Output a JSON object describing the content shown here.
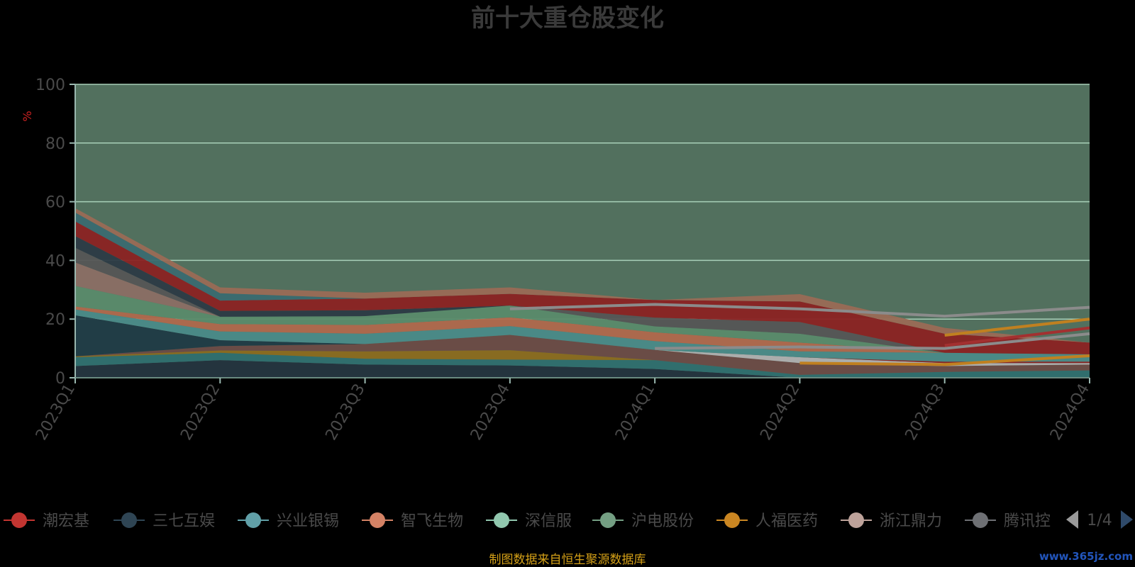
{
  "chart_data": {
    "type": "area",
    "title": "前十大重仓股变化",
    "ylabel": "%",
    "ylim": [
      0,
      100
    ],
    "yticks": [
      "0",
      "20",
      "40",
      "60",
      "80",
      "100"
    ],
    "grid": true,
    "categories": [
      "2023Q1",
      "2023Q2",
      "2023Q3",
      "2023Q4",
      "2024Q1",
      "2024Q2",
      "2024Q3",
      "2024Q4"
    ],
    "background_total": 100,
    "layers": [
      {
        "color": "#22303c",
        "values": [
          4,
          6,
          4.5,
          4.2,
          3,
          0,
          0,
          0
        ]
      },
      {
        "color": "#2e6e6e",
        "values": [
          3,
          2.5,
          2,
          2,
          3,
          1,
          2,
          2.5
        ]
      },
      {
        "color": "#8b6a1e",
        "values": [
          0.3,
          0.8,
          2.5,
          3.2,
          0,
          0,
          0,
          0
        ]
      },
      {
        "color": "#6b4a44",
        "values": [
          0,
          1.5,
          2.5,
          5.2,
          3.5,
          4,
          2,
          2
        ]
      },
      {
        "color": "#b0b0b0",
        "values": [
          0,
          0,
          0,
          0,
          0,
          2,
          1,
          0.5
        ]
      },
      {
        "color": "#8b2222",
        "values": [
          0,
          0,
          0,
          0,
          0,
          0,
          0.5,
          0.5
        ]
      },
      {
        "color": "#1f3a44",
        "values": [
          14,
          2,
          0,
          0,
          0,
          0,
          0,
          0
        ]
      },
      {
        "color": "#4a8a88",
        "values": [
          2,
          3,
          3.5,
          3,
          3,
          2,
          3,
          2.5
        ]
      },
      {
        "color": "#b0684c",
        "values": [
          1,
          2.5,
          3,
          3,
          3,
          3,
          0,
          0
        ]
      },
      {
        "color": "#5a8a6a",
        "values": [
          7,
          2.5,
          3,
          4,
          2,
          3,
          0,
          0
        ]
      },
      {
        "color": "#8b6e64",
        "values": [
          8,
          0,
          0,
          0,
          0,
          0,
          0,
          0
        ]
      },
      {
        "color": "#555555",
        "values": [
          5,
          0,
          0,
          0,
          3,
          4,
          0,
          0
        ]
      },
      {
        "color": "#2c3a44",
        "values": [
          4,
          2,
          2,
          0,
          0,
          0,
          0,
          0
        ]
      },
      {
        "color": "#8b2222",
        "values": [
          5,
          3.5,
          4,
          4,
          6,
          7,
          6.5,
          4
        ]
      },
      {
        "color": "#3a6a70",
        "values": [
          3,
          2.5,
          0,
          0,
          0,
          0,
          0,
          0
        ]
      },
      {
        "color": "#9a6a55",
        "values": [
          1.5,
          2,
          2,
          2.2,
          0,
          2.5,
          2,
          0
        ]
      }
    ],
    "lines": [
      {
        "color": "#8b8b8b",
        "values": [
          0,
          0,
          0,
          23.5,
          25,
          23.5,
          21,
          24
        ],
        "width": 4
      },
      {
        "color": "#8b8b8b",
        "values": [
          0,
          0,
          0,
          0,
          10,
          10.5,
          10,
          15
        ],
        "width": 4
      },
      {
        "color": "#a33030",
        "values": [
          0,
          0,
          0,
          0,
          0,
          0,
          11,
          17
        ],
        "width": 4
      },
      {
        "color": "#c08020",
        "values": [
          0,
          0,
          0,
          0,
          0,
          0,
          14.5,
          20
        ],
        "width": 4
      },
      {
        "color": "#c08020",
        "values": [
          0,
          0,
          0,
          0,
          0,
          5,
          4.5,
          7.5
        ],
        "width": 4
      }
    ],
    "legend_items": [
      {
        "name": "潮宏基",
        "color": "#c23531"
      },
      {
        "name": "三七互娱",
        "color": "#2f4554"
      },
      {
        "name": "兴业银锡",
        "color": "#61a0a8"
      },
      {
        "name": "智飞生物",
        "color": "#d48265"
      },
      {
        "name": "深信服",
        "color": "#91c7ae"
      },
      {
        "name": "沪电股份",
        "color": "#749f83"
      },
      {
        "name": "人福医药",
        "color": "#ca8622"
      },
      {
        "name": "浙江鼎力",
        "color": "#bda29a"
      },
      {
        "name": "腾讯控",
        "color": "#6e7074"
      }
    ],
    "legend_placement": "bottom",
    "pager": "1/4",
    "source_note": "制图数据来自恒生聚源数据库",
    "watermark": "www.365jz.com"
  }
}
